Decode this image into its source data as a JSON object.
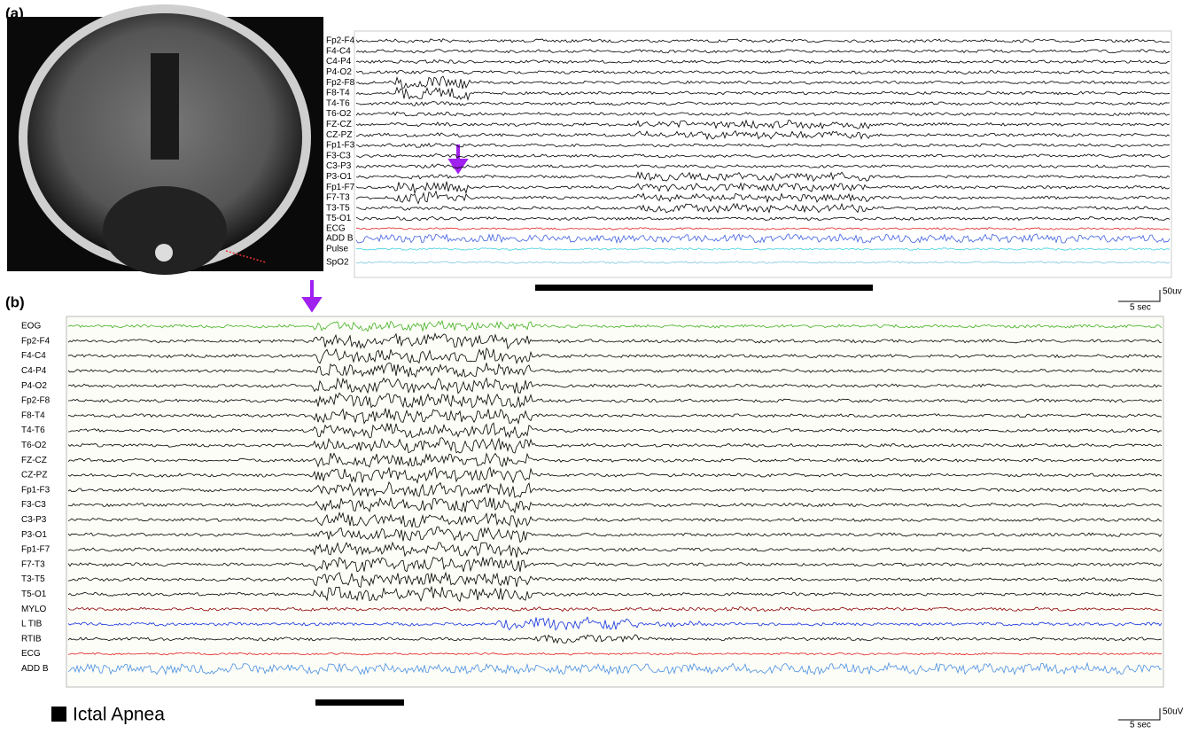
{
  "panel_a": {
    "label": "(a)",
    "channels": [
      "Fp2-F4",
      "F4-C4",
      "C4-P4",
      "P4-O2",
      "Fp2-F8",
      "F8-T4",
      "T4-T6",
      "T6-O2",
      "FZ-CZ",
      "CZ-PZ",
      "Fp1-F3",
      "F3-C3",
      "C3-P3",
      "P3-O1",
      "Fp1-F7",
      "F7-T3",
      "T3-T5",
      "T5-O1",
      "ECG",
      "ADD B",
      "Pulse",
      "SpO2"
    ],
    "scale": {
      "amplitude": "50uv",
      "time": "5 sec"
    }
  },
  "panel_b": {
    "label": "(b)",
    "channels": [
      "EOG",
      "Fp2-F4",
      "F4-C4",
      "C4-P4",
      "P4-O2",
      "Fp2-F8",
      "F8-T4",
      "T4-T6",
      "T6-O2",
      "FZ-CZ",
      "CZ-PZ",
      "Fp1-F3",
      "F3-C3",
      "C3-P3",
      "P3-O1",
      "Fp1-F7",
      "F7-T3",
      "T3-T5",
      "T5-O1",
      "MYLO",
      "L TIB",
      "RTIB",
      "ECG",
      "ADD B"
    ],
    "scale": {
      "amplitude": "50uV",
      "time": "5 sec"
    }
  },
  "legend": {
    "label": "Ictal Apnea"
  }
}
